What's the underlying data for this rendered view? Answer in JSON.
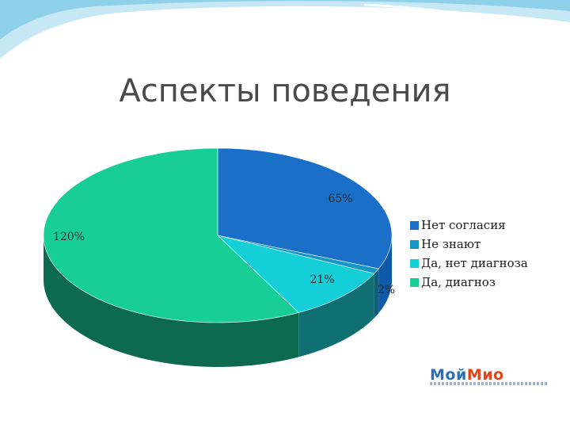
{
  "slide": {
    "title": "Аспекты поведения"
  },
  "chart_data": {
    "type": "pie",
    "title": "",
    "style": "3d",
    "series": [
      {
        "name": "Нет согласия",
        "value": 65,
        "label": "65%",
        "color": "#1a6fc9"
      },
      {
        "name": "Не знают",
        "value": 2,
        "label": "2%",
        "color": "#1596c8"
      },
      {
        "name": "Да, нет диагноза",
        "value": 21,
        "label": "21%",
        "color": "#14cfd8"
      },
      {
        "name": "Да,  диагноз",
        "value": 120,
        "label": "120%",
        "color": "#17cf96"
      }
    ],
    "legend_position": "right"
  },
  "logo": {
    "text_part1": "Мой",
    "text_part2": "Мио"
  }
}
